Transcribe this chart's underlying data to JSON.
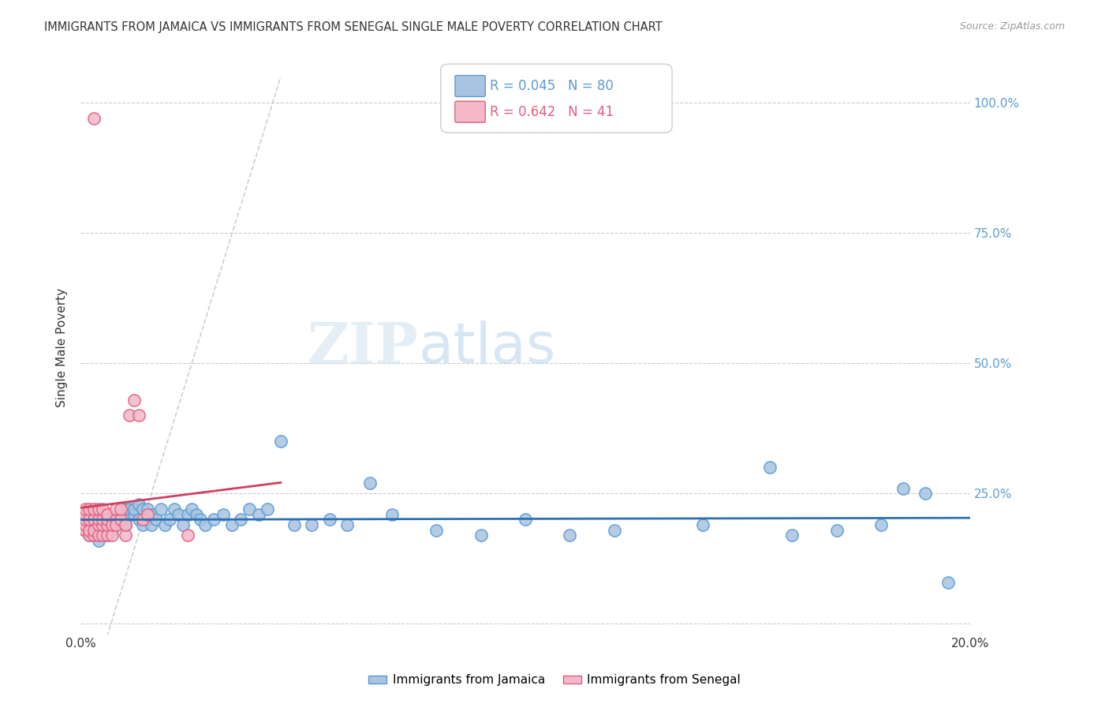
{
  "title": "IMMIGRANTS FROM JAMAICA VS IMMIGRANTS FROM SENEGAL SINGLE MALE POVERTY CORRELATION CHART",
  "source": "Source: ZipAtlas.com",
  "ylabel": "Single Male Poverty",
  "xlim": [
    0.0,
    0.2
  ],
  "ylim": [
    -0.02,
    1.08
  ],
  "yticks": [
    0.0,
    0.25,
    0.5,
    0.75,
    1.0
  ],
  "ytick_labels": [
    "",
    "25.0%",
    "50.0%",
    "75.0%",
    "100.0%"
  ],
  "xticks": [
    0.0,
    0.05,
    0.1,
    0.15,
    0.2
  ],
  "xtick_labels": [
    "0.0%",
    "",
    "",
    "",
    "20.0%"
  ],
  "background_color": "#ffffff",
  "grid_color": "#cccccc",
  "watermark_zip": "ZIP",
  "watermark_atlas": "atlas",
  "jamaica_color": "#a8c4e0",
  "jamaica_edge_color": "#5b9bd5",
  "senegal_color": "#f4b8c8",
  "senegal_edge_color": "#e06080",
  "jamaica_R": 0.045,
  "jamaica_N": 80,
  "senegal_R": 0.642,
  "senegal_N": 41,
  "jamaica_line_color": "#3070b0",
  "senegal_line_color": "#d04060",
  "legend_jamaica_text": "R = 0.045   N = 80",
  "legend_senegal_text": "R = 0.642   N = 41",
  "legend_jamaica_color": "#5b9bd5",
  "legend_senegal_color": "#e06080",
  "bottom_legend_jamaica": "Immigrants from Jamaica",
  "bottom_legend_senegal": "Immigrants from Senegal",
  "jamaica_scatter_x": [
    0.001,
    0.002,
    0.002,
    0.003,
    0.003,
    0.003,
    0.003,
    0.004,
    0.004,
    0.004,
    0.004,
    0.004,
    0.005,
    0.005,
    0.005,
    0.005,
    0.006,
    0.006,
    0.006,
    0.007,
    0.007,
    0.007,
    0.008,
    0.008,
    0.009,
    0.009,
    0.01,
    0.01,
    0.01,
    0.011,
    0.011,
    0.012,
    0.012,
    0.013,
    0.013,
    0.014,
    0.014,
    0.015,
    0.015,
    0.016,
    0.016,
    0.017,
    0.018,
    0.019,
    0.02,
    0.021,
    0.022,
    0.023,
    0.024,
    0.025,
    0.026,
    0.027,
    0.028,
    0.03,
    0.032,
    0.034,
    0.036,
    0.038,
    0.04,
    0.042,
    0.045,
    0.048,
    0.052,
    0.056,
    0.06,
    0.065,
    0.07,
    0.08,
    0.09,
    0.1,
    0.11,
    0.12,
    0.14,
    0.155,
    0.16,
    0.17,
    0.18,
    0.185,
    0.19,
    0.195
  ],
  "jamaica_scatter_y": [
    0.18,
    0.17,
    0.2,
    0.17,
    0.18,
    0.19,
    0.2,
    0.16,
    0.18,
    0.19,
    0.2,
    0.21,
    0.17,
    0.18,
    0.19,
    0.2,
    0.17,
    0.18,
    0.19,
    0.18,
    0.19,
    0.2,
    0.19,
    0.2,
    0.2,
    0.21,
    0.2,
    0.22,
    0.19,
    0.21,
    0.22,
    0.21,
    0.22,
    0.23,
    0.2,
    0.22,
    0.19,
    0.2,
    0.22,
    0.19,
    0.21,
    0.2,
    0.22,
    0.19,
    0.2,
    0.22,
    0.21,
    0.19,
    0.21,
    0.22,
    0.21,
    0.2,
    0.19,
    0.2,
    0.21,
    0.19,
    0.2,
    0.22,
    0.21,
    0.22,
    0.35,
    0.19,
    0.19,
    0.2,
    0.19,
    0.27,
    0.21,
    0.18,
    0.17,
    0.2,
    0.17,
    0.18,
    0.19,
    0.3,
    0.17,
    0.18,
    0.19,
    0.26,
    0.25,
    0.08
  ],
  "senegal_scatter_x": [
    0.001,
    0.001,
    0.001,
    0.001,
    0.001,
    0.002,
    0.002,
    0.002,
    0.002,
    0.003,
    0.003,
    0.003,
    0.003,
    0.004,
    0.004,
    0.004,
    0.004,
    0.005,
    0.005,
    0.005,
    0.005,
    0.006,
    0.006,
    0.006,
    0.006,
    0.007,
    0.007,
    0.008,
    0.008,
    0.008,
    0.009,
    0.009,
    0.01,
    0.01,
    0.011,
    0.012,
    0.013,
    0.014,
    0.015,
    0.024,
    0.003
  ],
  "senegal_scatter_y": [
    0.18,
    0.19,
    0.2,
    0.21,
    0.22,
    0.17,
    0.18,
    0.2,
    0.22,
    0.17,
    0.18,
    0.2,
    0.22,
    0.17,
    0.19,
    0.2,
    0.22,
    0.17,
    0.19,
    0.2,
    0.22,
    0.17,
    0.19,
    0.2,
    0.21,
    0.17,
    0.19,
    0.2,
    0.22,
    0.19,
    0.2,
    0.22,
    0.17,
    0.19,
    0.4,
    0.43,
    0.4,
    0.2,
    0.21,
    0.17,
    0.97
  ]
}
